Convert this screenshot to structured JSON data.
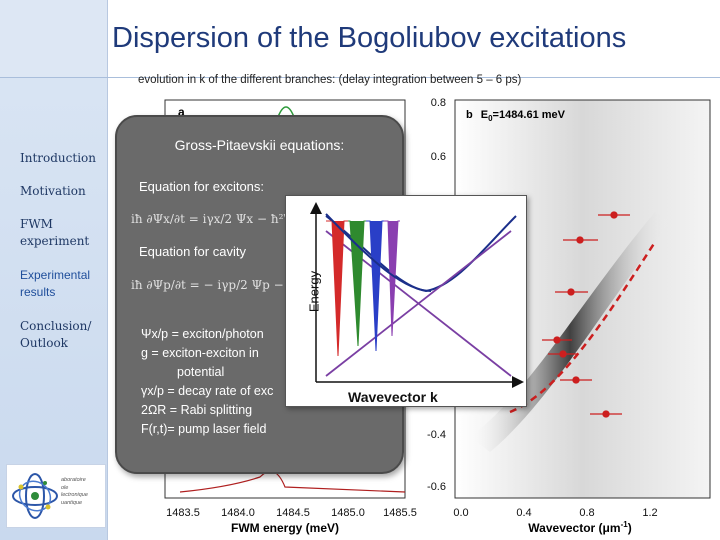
{
  "slide": {
    "title": "Dispersion of the Bogoliubov excitations",
    "subtitle": "evolution in k of the different branches: (delay integration between 5 – 6 ps)"
  },
  "sidebar": {
    "items": [
      {
        "label": "Introduction",
        "active": false
      },
      {
        "label": "Motivation",
        "active": false
      },
      {
        "label": "FWM experiment",
        "active": false
      },
      {
        "label": "Experimental results",
        "active": true
      },
      {
        "label": "Conclusion/ Outlook",
        "active": false
      }
    ],
    "logo_lines": [
      "aboratoire",
      "ole",
      "lectronique",
      "uantique"
    ]
  },
  "figure": {
    "panel_a": {
      "label": "a",
      "xlabel": "FWM energy (meV)",
      "x_ticks": [
        "1483.5",
        "1484.0",
        "1484.5",
        "1485.0",
        "1485.5"
      ]
    },
    "panel_b": {
      "label": "b",
      "energy_label": "E",
      "energy_sub": "0",
      "energy_value": "=1484.61 meV",
      "xlabel": "Wavevector (μm",
      "xlabel_sup": "-1",
      "xlabel_end": ")",
      "x_ticks": [
        "0.0",
        "0.4",
        "0.8",
        "1.2"
      ],
      "y_ticks": [
        "0.8",
        "0.6",
        "-0.4",
        "-0.6"
      ]
    }
  },
  "gp_box": {
    "title": "Gross-Pitaevskii equations:",
    "excitons_heading": "Equation for excitons:",
    "cavity_heading": "Equation for cavity",
    "definitions": [
      "Ψx/p = exciton/photon",
      "g = exciton-exciton in",
      "potential",
      "γx/p = decay rate of exc",
      "2ΩR = Rabi splitting",
      "F(r,t)= pump laser field"
    ]
  },
  "dispersion_box": {
    "xlabel": "Wavevector k",
    "ylabel": "Energy"
  },
  "colors": {
    "title": "#1f3a7a",
    "sidebar": "#dbe6f4",
    "gp_box": "#6a6a6a",
    "data_points": "#cc1f1f",
    "branch_blue": "#1b2f8a",
    "branch_purple": "#7a3fa3"
  }
}
